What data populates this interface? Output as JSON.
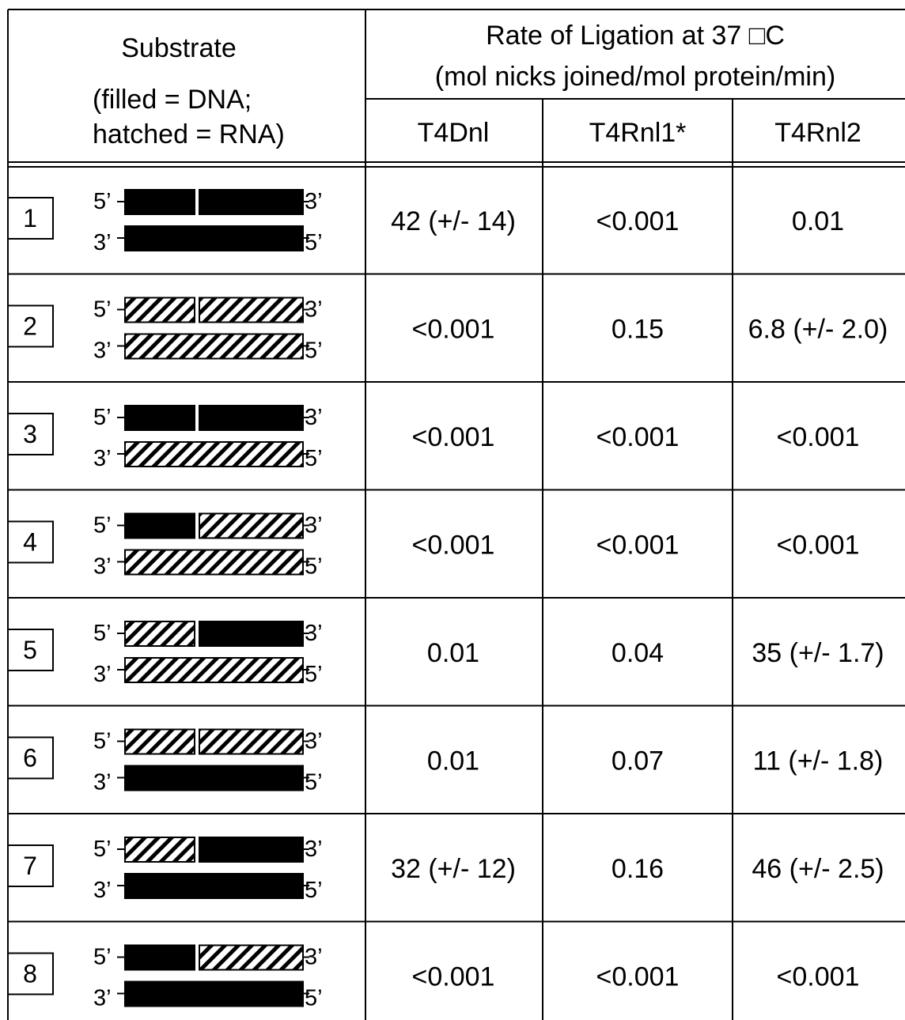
{
  "header": {
    "substrate_title": "Substrate",
    "substrate_legend_line1": "(filled = DNA;",
    "substrate_legend_line2": "hatched = RNA)",
    "rate_title_line1": "Rate of Ligation at 37 □C",
    "rate_title_line2": "(mol nicks joined/mol protein/min)",
    "columns": [
      "T4Dnl",
      "T4Rnl1*",
      "T4Rnl2"
    ]
  },
  "strand_labels": {
    "top_left": "5’",
    "top_right": "3’",
    "bottom_left": "3’",
    "bottom_right": "5’"
  },
  "rows": [
    {
      "number": "1",
      "top": [
        "DNA",
        "DNA"
      ],
      "bottom": "DNA",
      "values": [
        "42 (+/- 14)",
        "<0.001",
        "0.01"
      ]
    },
    {
      "number": "2",
      "top": [
        "RNA",
        "RNA"
      ],
      "bottom": "RNA",
      "values": [
        "<0.001",
        "0.15",
        "6.8 (+/- 2.0)"
      ]
    },
    {
      "number": "3",
      "top": [
        "DNA",
        "DNA"
      ],
      "bottom": "RNA",
      "values": [
        "<0.001",
        "<0.001",
        "<0.001"
      ]
    },
    {
      "number": "4",
      "top": [
        "DNA",
        "RNA"
      ],
      "bottom": "RNA",
      "values": [
        "<0.001",
        "<0.001",
        "<0.001"
      ]
    },
    {
      "number": "5",
      "top": [
        "RNA",
        "DNA"
      ],
      "bottom": "RNA",
      "values": [
        "0.01",
        "0.04",
        "35 (+/- 1.7)"
      ]
    },
    {
      "number": "6",
      "top": [
        "RNA",
        "RNA"
      ],
      "bottom": "DNA",
      "values": [
        "0.01",
        "0.07",
        "11 (+/- 1.8)"
      ]
    },
    {
      "number": "7",
      "top": [
        "RNA",
        "DNA"
      ],
      "bottom": "DNA",
      "values": [
        "32 (+/- 12)",
        "0.16",
        "46 (+/- 2.5)"
      ]
    },
    {
      "number": "8",
      "top": [
        "DNA",
        "RNA"
      ],
      "bottom": "DNA",
      "values": [
        "<0.001",
        "<0.001",
        "<0.001"
      ]
    }
  ]
}
